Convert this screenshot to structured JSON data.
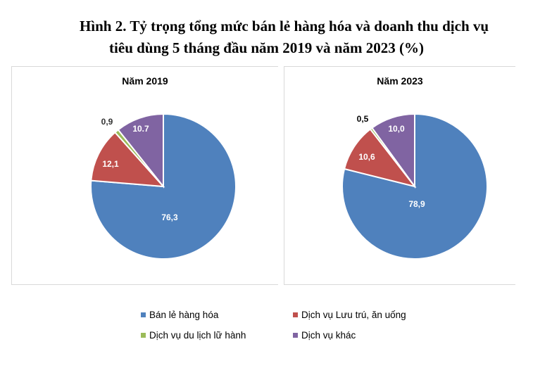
{
  "title": {
    "line1": "Hình 2. Tỷ trọng tổng mức bán lẻ hàng hóa và doanh thu dịch vụ",
    "line2": "tiêu dùng 5 tháng đầu năm 2019 và năm 2023 (%)"
  },
  "panels": [
    {
      "title": "Năm 2019"
    },
    {
      "title": "Năm 2023"
    }
  ],
  "legend": [
    {
      "label": "Bán lẻ hàng hóa",
      "color": "#4F81BD"
    },
    {
      "label": "Dịch vụ Lưu trú, ăn uống",
      "color": "#C0504D"
    },
    {
      "label": "Dịch vụ du lịch lữ hành",
      "color": "#9BBB59"
    },
    {
      "label": "Dịch vụ khác",
      "color": "#8064A2"
    }
  ],
  "chart_data": [
    {
      "type": "pie",
      "title": "Năm 2019",
      "categories": [
        "Bán lẻ hàng hóa",
        "Dịch vụ Lưu trú, ăn uống",
        "Dịch vụ du lịch lữ hành",
        "Dịch vụ khác"
      ],
      "values": [
        76.3,
        12.1,
        0.9,
        10.7
      ],
      "labels": [
        "76,3",
        "12,1",
        "0,9",
        "10.7"
      ],
      "colors": [
        "#4F81BD",
        "#C0504D",
        "#9BBB59",
        "#8064A2"
      ],
      "legend_position": "bottom"
    },
    {
      "type": "pie",
      "title": "Năm 2023",
      "categories": [
        "Bán lẻ hàng hóa",
        "Dịch vụ Lưu trú, ăn uống",
        "Dịch vụ du lịch lữ hành",
        "Dịch vụ khác"
      ],
      "values": [
        78.9,
        10.6,
        0.5,
        10.0
      ],
      "labels": [
        "78,9",
        "10,6",
        "0,5",
        "10,0"
      ],
      "colors": [
        "#4F81BD",
        "#C0504D",
        "#9BBB59",
        "#8064A2"
      ],
      "legend_position": "bottom"
    }
  ]
}
